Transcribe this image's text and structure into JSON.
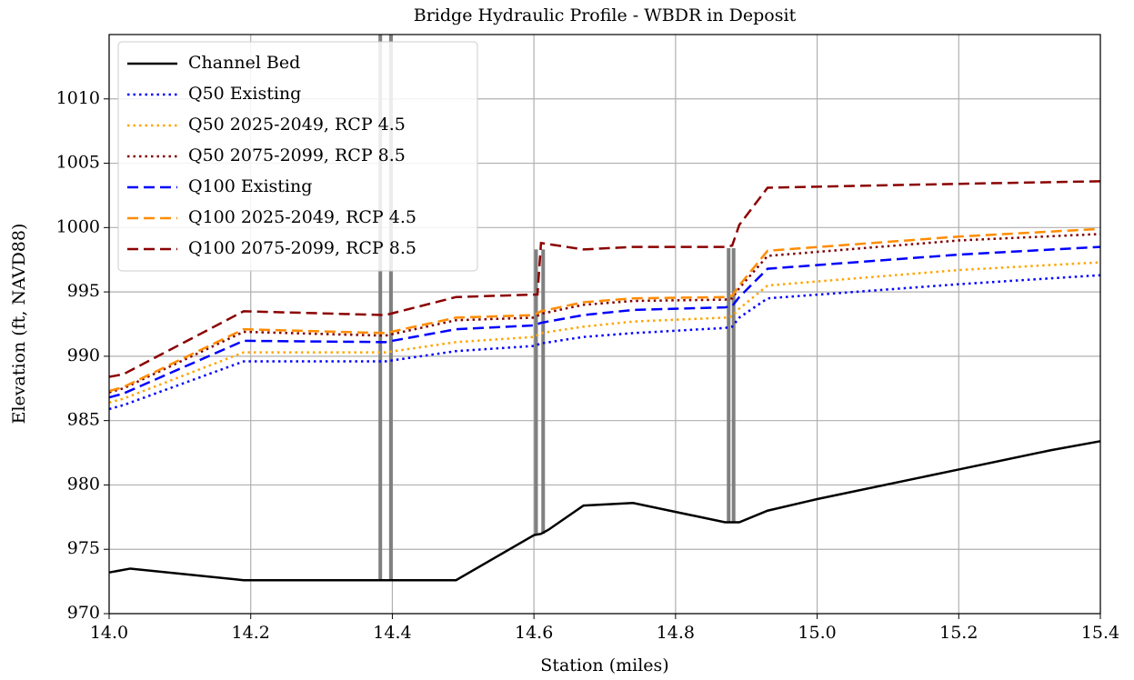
{
  "chart_data": {
    "type": "line",
    "title": "Bridge Hydraulic Profile - WBDR in Deposit",
    "xlabel": "Station (miles)",
    "ylabel": "Elevation (ft, NAVD88)",
    "xlim": [
      14.0,
      15.4
    ],
    "ylim": [
      970,
      1015
    ],
    "xticks": [
      {
        "value": 14.0,
        "label": "14.0"
      },
      14.2,
      14.4,
      14.6,
      14.8,
      {
        "value": 15.0,
        "label": "15.0"
      },
      15.2,
      15.4
    ],
    "yticks": [
      970,
      975,
      980,
      985,
      990,
      995,
      1000,
      1005,
      1010
    ],
    "grid": true,
    "legend": "upper left",
    "series": [
      {
        "name": "Channel Bed",
        "color": "#000000",
        "dash": "solid",
        "x": [
          14.0,
          14.03,
          14.19,
          14.49,
          14.6,
          14.61,
          14.62,
          14.67,
          14.74,
          14.87,
          14.89,
          14.93,
          15.0,
          15.2,
          15.33,
          15.4
        ],
        "values": [
          973.2,
          973.5,
          972.6,
          972.6,
          976.1,
          976.2,
          976.5,
          978.4,
          978.6,
          977.1,
          977.1,
          978.0,
          978.9,
          981.2,
          982.7,
          983.4
        ]
      },
      {
        "name": "Q50 Existing",
        "color": "#0000ff",
        "dash": "dotted",
        "x": [
          14.0,
          14.02,
          14.19,
          14.39,
          14.49,
          14.6,
          14.61,
          14.67,
          14.74,
          14.87,
          14.88,
          14.89,
          14.93,
          15.2,
          15.4
        ],
        "values": [
          985.9,
          986.2,
          989.6,
          989.6,
          990.4,
          990.8,
          991.0,
          991.5,
          991.8,
          992.2,
          992.3,
          993.0,
          994.5,
          995.6,
          996.3
        ]
      },
      {
        "name": "Q50 2025-2049, RCP 4.5",
        "color": "#ffa500",
        "dash": "dotted",
        "x": [
          14.0,
          14.02,
          14.19,
          14.39,
          14.49,
          14.6,
          14.61,
          14.67,
          14.74,
          14.87,
          14.88,
          14.89,
          14.93,
          15.2,
          15.4
        ],
        "values": [
          986.4,
          986.7,
          990.3,
          990.3,
          991.1,
          991.5,
          991.8,
          992.3,
          992.7,
          993.0,
          993.1,
          993.7,
          995.5,
          996.7,
          997.3
        ]
      },
      {
        "name": "Q50 2075-2099, RCP 8.5",
        "color": "#800000",
        "dash": "dotted",
        "x": [
          14.0,
          14.02,
          14.19,
          14.39,
          14.49,
          14.6,
          14.61,
          14.67,
          14.74,
          14.87,
          14.88,
          14.89,
          14.93,
          15.2,
          15.4
        ],
        "values": [
          987.2,
          987.5,
          991.9,
          991.6,
          992.8,
          993.0,
          993.3,
          994.0,
          994.3,
          994.4,
          994.5,
          995.3,
          997.8,
          999.0,
          999.5
        ]
      },
      {
        "name": "Q100 Existing",
        "color": "#0000ff",
        "dash": "dashed",
        "x": [
          14.0,
          14.02,
          14.19,
          14.39,
          14.49,
          14.6,
          14.61,
          14.67,
          14.74,
          14.87,
          14.88,
          14.89,
          14.93,
          15.2,
          15.4
        ],
        "values": [
          986.8,
          987.1,
          991.2,
          991.1,
          992.1,
          992.4,
          992.6,
          993.2,
          993.6,
          993.8,
          993.9,
          994.6,
          996.8,
          997.9,
          998.5
        ]
      },
      {
        "name": "Q100 2025-2049, RCP 4.5",
        "color": "#ff8c00",
        "dash": "dashed",
        "x": [
          14.0,
          14.02,
          14.19,
          14.39,
          14.49,
          14.6,
          14.61,
          14.67,
          14.74,
          14.87,
          14.88,
          14.89,
          14.93,
          15.2,
          15.4
        ],
        "values": [
          987.3,
          987.6,
          992.1,
          991.8,
          993.0,
          993.2,
          993.5,
          994.2,
          994.5,
          994.6,
          994.7,
          995.5,
          998.2,
          999.3,
          999.9
        ]
      },
      {
        "name": "Q100 2075-2099, RCP 8.5",
        "color": "#8b0000",
        "dash": "dashed",
        "x": [
          14.0,
          14.02,
          14.19,
          14.39,
          14.49,
          14.605,
          14.61,
          14.67,
          14.74,
          14.87,
          14.88,
          14.89,
          14.93,
          15.2,
          15.4
        ],
        "values": [
          988.4,
          988.6,
          993.5,
          993.2,
          994.6,
          994.8,
          998.8,
          998.3,
          998.5,
          998.5,
          998.6,
          1000.2,
          1003.1,
          1003.4,
          1003.6
        ]
      }
    ],
    "bridges": [
      {
        "x": 14.383,
        "low": 972.6,
        "high": 1015
      },
      {
        "x": 14.398,
        "low": 972.6,
        "high": 1015
      },
      {
        "x": 14.603,
        "low": 976.1,
        "high": 998.3
      },
      {
        "x": 14.613,
        "low": 976.2,
        "high": 998.3
      },
      {
        "x": 14.875,
        "low": 977.1,
        "high": 998.4
      },
      {
        "x": 14.882,
        "low": 977.1,
        "high": 998.4
      }
    ]
  }
}
